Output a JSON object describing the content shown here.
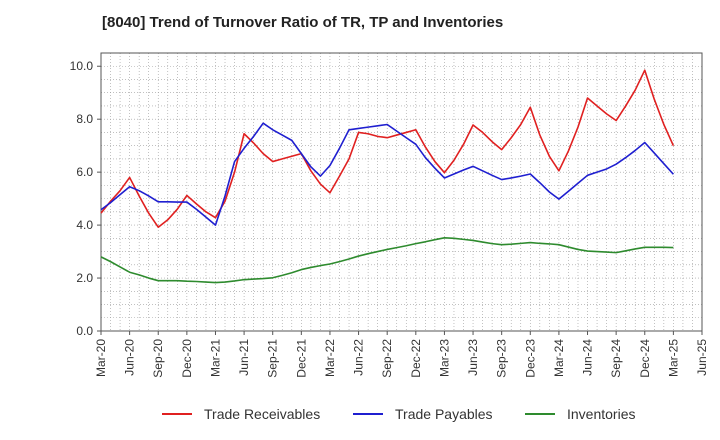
{
  "chart_data": {
    "type": "line",
    "title": "[8040]  Trend of Turnover Ratio of TR, TP and Inventories",
    "xlabel": "",
    "ylabel": "",
    "x_ticks": [
      "Mar-20",
      "Jun-20",
      "Sep-20",
      "Dec-20",
      "Mar-21",
      "Jun-21",
      "Sep-21",
      "Dec-21",
      "Mar-22",
      "Jun-22",
      "Sep-22",
      "Dec-22",
      "Mar-23",
      "Jun-23",
      "Sep-23",
      "Dec-23",
      "Mar-24",
      "Jun-24",
      "Sep-24",
      "Dec-24",
      "Mar-25",
      "Jun-25"
    ],
    "y_ticks": [
      "0.0",
      "2.0",
      "4.0",
      "6.0",
      "8.0",
      "10.0"
    ],
    "ylim": [
      0,
      10.5
    ],
    "grid": true,
    "legend_position": "bottom",
    "x": [
      "Mar-20",
      "Apr-20",
      "May-20",
      "Jun-20",
      "Jul-20",
      "Aug-20",
      "Sep-20",
      "Oct-20",
      "Nov-20",
      "Dec-20",
      "Jan-21",
      "Feb-21",
      "Mar-21",
      "Apr-21",
      "May-21",
      "Jun-21",
      "Jul-21",
      "Aug-21",
      "Sep-21",
      "Oct-21",
      "Nov-21",
      "Dec-21",
      "Jan-22",
      "Feb-22",
      "Mar-22",
      "Apr-22",
      "May-22",
      "Jun-22",
      "Jul-22",
      "Aug-22",
      "Sep-22",
      "Oct-22",
      "Nov-22",
      "Dec-22",
      "Jan-23",
      "Feb-23",
      "Mar-23",
      "Apr-23",
      "May-23",
      "Jun-23",
      "Jul-23",
      "Aug-23",
      "Sep-23",
      "Oct-23",
      "Nov-23",
      "Dec-23",
      "Jan-24",
      "Feb-24",
      "Mar-24",
      "Apr-24",
      "May-24",
      "Jun-24",
      "Jul-24",
      "Aug-24",
      "Sep-24",
      "Oct-24",
      "Nov-24",
      "Dec-24",
      "Jan-25",
      "Feb-25",
      "Mar-25"
    ],
    "series": [
      {
        "name": "Trade Receivables",
        "color": "#e02020",
        "values": [
          4.45,
          4.9,
          5.3,
          5.8,
          5.1,
          4.45,
          3.92,
          4.2,
          4.6,
          5.12,
          4.8,
          4.5,
          4.28,
          4.9,
          6.0,
          7.45,
          7.1,
          6.7,
          6.4,
          6.5,
          6.6,
          6.7,
          6.05,
          5.55,
          5.22,
          5.85,
          6.5,
          7.5,
          7.45,
          7.35,
          7.3,
          7.4,
          7.5,
          7.6,
          6.95,
          6.4,
          5.98,
          6.45,
          7.05,
          7.78,
          7.5,
          7.15,
          6.85,
          7.3,
          7.8,
          8.45,
          7.4,
          6.6,
          6.05,
          6.8,
          7.7,
          8.8,
          8.5,
          8.2,
          7.95,
          8.5,
          9.1,
          9.85,
          8.75,
          7.8,
          7.0
        ]
      },
      {
        "name": "Trade Payables",
        "color": "#1f1fd0",
        "values": [
          4.58,
          4.85,
          5.15,
          5.45,
          5.3,
          5.1,
          4.88,
          4.88,
          4.87,
          4.87,
          4.6,
          4.3,
          4.0,
          5.1,
          6.4,
          6.9,
          7.35,
          7.85,
          7.6,
          7.4,
          7.2,
          6.7,
          6.2,
          5.85,
          6.25,
          6.9,
          7.6,
          7.65,
          7.7,
          7.75,
          7.8,
          7.55,
          7.3,
          7.05,
          6.55,
          6.15,
          5.78,
          5.93,
          6.08,
          6.22,
          6.05,
          5.88,
          5.72,
          5.78,
          5.85,
          5.93,
          5.6,
          5.25,
          4.98,
          5.28,
          5.58,
          5.88,
          6.0,
          6.12,
          6.3,
          6.55,
          6.82,
          7.12,
          6.72,
          6.32,
          5.92
        ]
      },
      {
        "name": "Inventories",
        "color": "#2e8b2e",
        "values": [
          2.8,
          2.62,
          2.42,
          2.22,
          2.12,
          2.0,
          1.9,
          1.9,
          1.9,
          1.88,
          1.87,
          1.85,
          1.83,
          1.85,
          1.89,
          1.94,
          1.96,
          1.98,
          2.01,
          2.1,
          2.2,
          2.32,
          2.4,
          2.47,
          2.53,
          2.62,
          2.72,
          2.83,
          2.92,
          3.0,
          3.08,
          3.15,
          3.22,
          3.3,
          3.37,
          3.45,
          3.52,
          3.5,
          3.46,
          3.42,
          3.36,
          3.3,
          3.26,
          3.28,
          3.31,
          3.34,
          3.31,
          3.29,
          3.26,
          3.17,
          3.08,
          3.02,
          3.0,
          2.98,
          2.96,
          3.03,
          3.1,
          3.16,
          3.16,
          3.16,
          3.15
        ]
      }
    ]
  }
}
